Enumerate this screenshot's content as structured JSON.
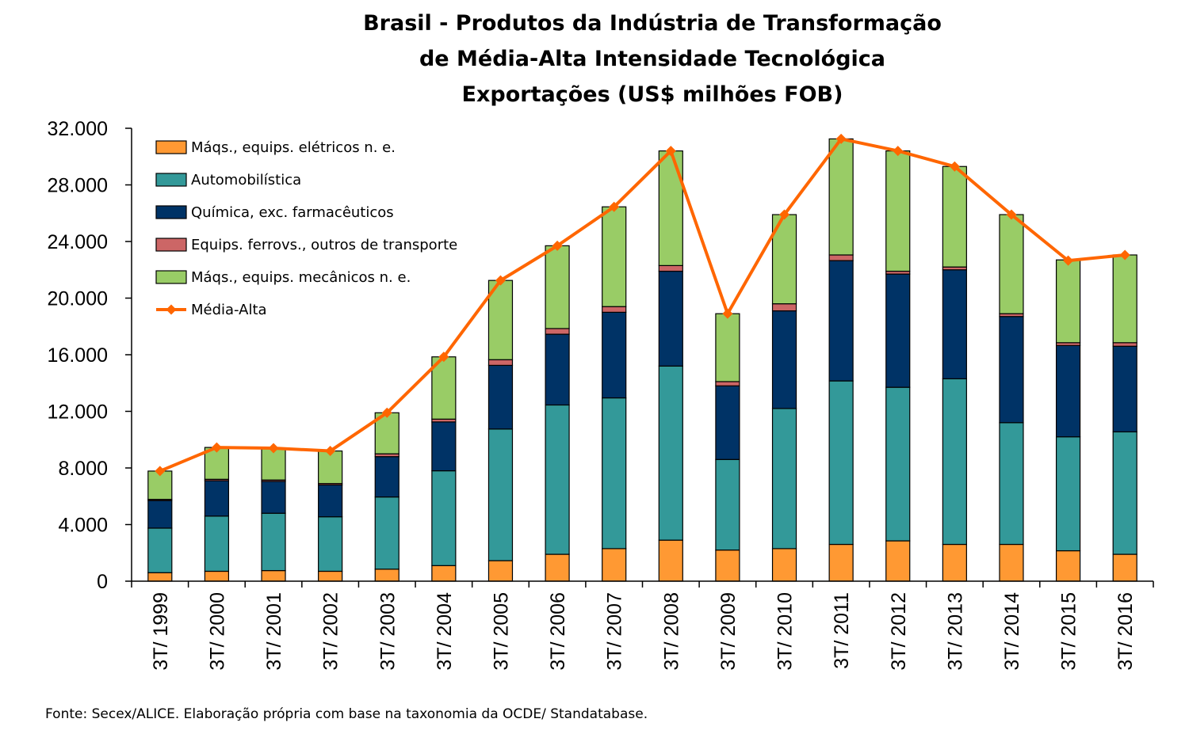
{
  "chart_data": {
    "type": "bar",
    "stacked": true,
    "title_lines": [
      "Brasil - Produtos da Indústria de Transformação",
      "de Média-Alta Intensidade Tecnológica",
      "Exportações (US$ milhões FOB)"
    ],
    "categories": [
      "3T/ 1999",
      "3T/ 2000",
      "3T/ 2001",
      "3T/ 2002",
      "3T/ 2003",
      "3T/ 2004",
      "3T/ 2005",
      "3T/ 2006",
      "3T/ 2007",
      "3T/ 2008",
      "3T/ 2009",
      "3T/ 2010",
      "3T/ 2011",
      "3T/ 2012",
      "3T/ 2013",
      "3T/ 2014",
      "3T/ 2015",
      "3T/ 2016"
    ],
    "ylim": [
      0,
      32000
    ],
    "yticks": [
      0,
      4000,
      8000,
      12000,
      16000,
      20000,
      24000,
      28000,
      32000
    ],
    "ytick_labels": [
      "0",
      "4.000",
      "8.000",
      "12.000",
      "16.000",
      "20.000",
      "24.000",
      "28.000",
      "32.000"
    ],
    "series": [
      {
        "name": "Máqs., equips. elétricos n. e.",
        "color": "#FF9933",
        "values": [
          600,
          700,
          750,
          700,
          850,
          1100,
          1450,
          1900,
          2300,
          2900,
          2200,
          2300,
          2600,
          2850,
          2600,
          2600,
          2150,
          1900
        ]
      },
      {
        "name": "Automobilística",
        "color": "#339999",
        "values": [
          3150,
          3900,
          4050,
          3850,
          5100,
          6700,
          9300,
          10550,
          10650,
          12300,
          6400,
          9900,
          11550,
          10850,
          11700,
          8600,
          8050,
          8650
        ]
      },
      {
        "name": "Química, exc. farmacêuticos",
        "color": "#003366",
        "values": [
          1950,
          2500,
          2250,
          2250,
          2850,
          3450,
          4500,
          5000,
          6050,
          6700,
          5200,
          6900,
          8500,
          8000,
          7700,
          7500,
          6450,
          6050
        ]
      },
      {
        "name": "Equips. ferrovs., outros de transporte",
        "color": "#CC6666",
        "values": [
          80,
          100,
          100,
          100,
          200,
          200,
          400,
          400,
          400,
          400,
          300,
          500,
          400,
          200,
          200,
          200,
          200,
          250
        ]
      },
      {
        "name": "Máqs., equips. mecânicos  n. e.",
        "color": "#99CC66",
        "values": [
          2000,
          2250,
          2250,
          2300,
          2900,
          4400,
          5600,
          5850,
          7050,
          8100,
          4800,
          6300,
          8200,
          8500,
          7100,
          7000,
          5850,
          6200
        ]
      }
    ],
    "line_series": {
      "name": "Média-Alta",
      "color": "#FF6600",
      "values": [
        7780,
        9450,
        9400,
        9200,
        11900,
        15850,
        21250,
        23700,
        26450,
        30400,
        18900,
        25900,
        31250,
        30400,
        29300,
        25900,
        22650,
        23050
      ]
    },
    "legend_position": "top-left",
    "grid": false
  },
  "source_note": "Fonte: Secex/ALICE. Elaboração própria com base na taxonomia da OCDE/ Standatabase."
}
